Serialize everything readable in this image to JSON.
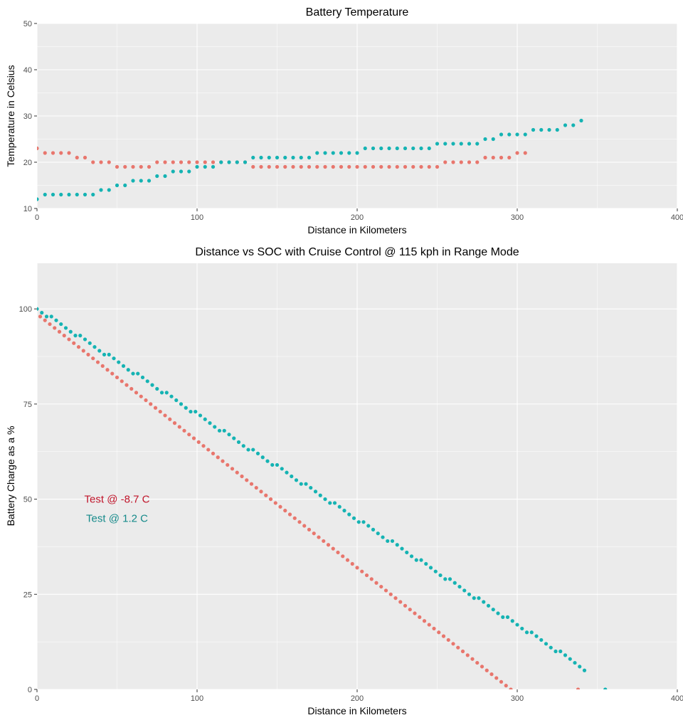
{
  "colors": {
    "cold": "#e8766d",
    "warm": "#15b3b3",
    "annot_cold": "#c0142a",
    "annot_warm": "#158a8a",
    "panel_bg": "#ebebeb"
  },
  "chart_data": [
    {
      "id": "temp",
      "type": "scatter",
      "title": "Battery Temperature",
      "xlabel": "Distance in Kilometers",
      "ylabel": "Temperature in Celsius",
      "xlim": [
        0,
        400
      ],
      "ylim": [
        10,
        50
      ],
      "xticks": [
        0,
        100,
        200,
        300,
        400
      ],
      "yticks": [
        10,
        20,
        30,
        40,
        50
      ],
      "grid": true,
      "series": [
        {
          "key": "cold",
          "x": [
            0,
            5,
            10,
            15,
            20,
            25,
            30,
            35,
            40,
            45,
            50,
            55,
            60,
            65,
            70,
            75,
            80,
            85,
            90,
            95,
            100,
            105,
            110,
            115,
            120,
            125,
            130,
            135,
            140,
            145,
            150,
            155,
            160,
            165,
            170,
            175,
            180,
            185,
            190,
            195,
            200,
            205,
            210,
            215,
            220,
            225,
            230,
            235,
            240,
            245,
            250,
            255,
            260,
            265,
            270,
            275,
            280,
            285,
            290,
            295,
            300,
            305
          ],
          "y": [
            23,
            22,
            22,
            22,
            22,
            21,
            21,
            20,
            20,
            20,
            19,
            19,
            19,
            19,
            19,
            20,
            20,
            20,
            20,
            20,
            20,
            20,
            20,
            20,
            20,
            20,
            20,
            19,
            19,
            19,
            19,
            19,
            19,
            19,
            19,
            19,
            19,
            19,
            19,
            19,
            19,
            19,
            19,
            19,
            19,
            19,
            19,
            19,
            19,
            19,
            19,
            20,
            20,
            20,
            20,
            20,
            21,
            21,
            21,
            21,
            22,
            22
          ]
        },
        {
          "key": "warm",
          "x": [
            0,
            5,
            10,
            15,
            20,
            25,
            30,
            35,
            40,
            45,
            50,
            55,
            60,
            65,
            70,
            75,
            80,
            85,
            90,
            95,
            100,
            105,
            110,
            115,
            120,
            125,
            130,
            135,
            140,
            145,
            150,
            155,
            160,
            165,
            170,
            175,
            180,
            185,
            190,
            195,
            200,
            205,
            210,
            215,
            220,
            225,
            230,
            235,
            240,
            245,
            250,
            255,
            260,
            265,
            270,
            275,
            280,
            285,
            290,
            295,
            300,
            305,
            310,
            315,
            320,
            325,
            330,
            335,
            340
          ],
          "y": [
            12,
            13,
            13,
            13,
            13,
            13,
            13,
            13,
            14,
            14,
            15,
            15,
            16,
            16,
            16,
            17,
            17,
            18,
            18,
            18,
            19,
            19,
            19,
            20,
            20,
            20,
            20,
            21,
            21,
            21,
            21,
            21,
            21,
            21,
            21,
            22,
            22,
            22,
            22,
            22,
            22,
            23,
            23,
            23,
            23,
            23,
            23,
            23,
            23,
            23,
            24,
            24,
            24,
            24,
            24,
            24,
            25,
            25,
            26,
            26,
            26,
            26,
            27,
            27,
            27,
            27,
            28,
            28,
            29
          ]
        }
      ]
    },
    {
      "id": "soc",
      "type": "scatter",
      "title": "Distance vs SOC with Cruise Control @ 115 kph in Range Mode",
      "xlabel": "Distance in Kilometers",
      "ylabel": "Battery Charge as a %",
      "xlim": [
        0,
        400
      ],
      "ylim": [
        0,
        112
      ],
      "xticks": [
        0,
        100,
        200,
        300,
        400
      ],
      "yticks": [
        0,
        25,
        50,
        75,
        100
      ],
      "grid": true,
      "series": [
        {
          "key": "cold",
          "x_start": 2,
          "x_step": 3,
          "y_start": 98,
          "y_step": -1,
          "count": 101,
          "extra_points": [
            [
              338,
              0
            ]
          ]
        },
        {
          "key": "warm",
          "x_start": 0,
          "x_step": 3,
          "y_start": 100,
          "y_step": -0.83,
          "count": 115,
          "extra_points": [
            [
              355,
              0
            ]
          ]
        }
      ],
      "annotations": [
        {
          "key": "cold",
          "text": "Test @   -8.7  C",
          "x": 50,
          "y": 50
        },
        {
          "key": "warm",
          "text": "Test @   1.2  C",
          "x": 50,
          "y": 45
        }
      ]
    }
  ]
}
